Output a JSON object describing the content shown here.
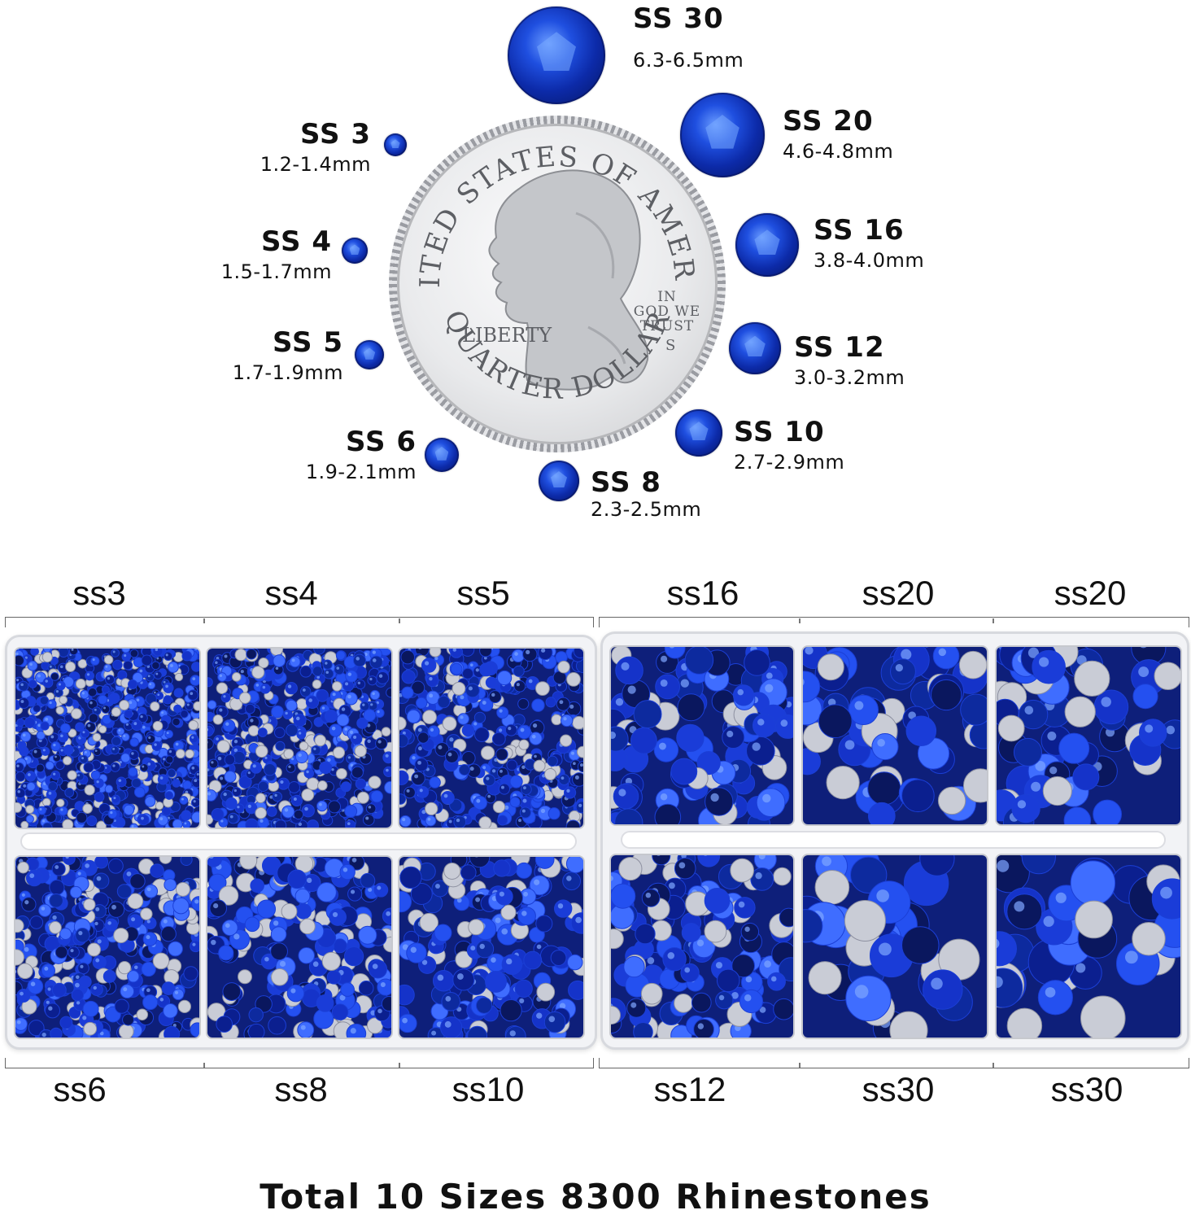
{
  "size_chart": [
    {
      "code": "SS 30",
      "dim": "6.3-6.5mm"
    },
    {
      "code": "SS 20",
      "dim": "4.6-4.8mm"
    },
    {
      "code": "SS 16",
      "dim": "3.8-4.0mm"
    },
    {
      "code": "SS 12",
      "dim": "3.0-3.2mm"
    },
    {
      "code": "SS 10",
      "dim": "2.7-2.9mm"
    },
    {
      "code": "SS 8",
      "dim": "2.3-2.5mm"
    },
    {
      "code": "SS 6",
      "dim": "1.9-2.1mm"
    },
    {
      "code": "SS 5",
      "dim": "1.7-1.9mm"
    },
    {
      "code": "SS 4",
      "dim": "1.5-1.7mm"
    },
    {
      "code": "SS 3",
      "dim": "1.2-1.4mm"
    }
  ],
  "coin": {
    "top_text": "UNITED STATES OF AMERICA",
    "motto": "IN GOD WE TRUST",
    "liberty": "LIBERTY",
    "mint": "S",
    "bottom_text": "QUARTER DOLLAR"
  },
  "box_left": {
    "top_labels": [
      "ss3",
      "ss4",
      "ss5"
    ],
    "bottom_labels": [
      "ss6",
      "ss8",
      "ss10"
    ]
  },
  "box_right": {
    "top_labels": [
      "ss16",
      "ss20",
      "ss20"
    ],
    "bottom_labels": [
      "ss12",
      "ss30",
      "ss30"
    ]
  },
  "stone_color": "#1b3fd6",
  "total": "Total 10 Sizes 8300 Rhinestones"
}
